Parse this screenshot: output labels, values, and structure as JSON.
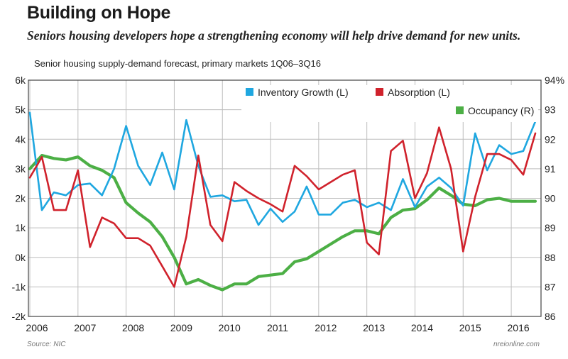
{
  "header": {
    "title": "Building on Hope",
    "subtitle": "Seniors housing developers hope a strengthening economy will help drive demand for new units."
  },
  "footer": {
    "source": "Source: NIC",
    "credit": "nreionline.com"
  },
  "colors": {
    "inventory": "#1fa7e0",
    "absorption": "#d0222c",
    "occupancy": "#4caf45",
    "grid": "#bdbdbd"
  },
  "chart_data": {
    "type": "line",
    "title": "Senior housing supply-demand forecast, primary markets 1Q06–3Q16",
    "x_ticks": [
      "2006",
      "2007",
      "2008",
      "2009",
      "2010",
      "2011",
      "2012",
      "2013",
      "2014",
      "2015",
      "2016"
    ],
    "left_axis": {
      "ylim": [
        -2000,
        6000
      ],
      "tick_values": [
        -2000,
        -1000,
        0,
        1000,
        2000,
        3000,
        4000,
        5000,
        6000
      ],
      "tick_labels": [
        "-2k",
        "-1k",
        "0k",
        "1k",
        "2k",
        "3k",
        "4k",
        "5k",
        "6k"
      ]
    },
    "right_axis": {
      "ylim": [
        86,
        94
      ],
      "tick_values": [
        86,
        87,
        88,
        89,
        90,
        91,
        92,
        93,
        94
      ],
      "tick_labels": [
        "86",
        "87",
        "88",
        "89",
        "90",
        "91",
        "92",
        "93",
        "94%"
      ]
    },
    "legend_position": "top-right",
    "grid": true,
    "x": [
      "1Q06",
      "2Q06",
      "3Q06",
      "4Q06",
      "1Q07",
      "2Q07",
      "3Q07",
      "4Q07",
      "1Q08",
      "2Q08",
      "3Q08",
      "4Q08",
      "1Q09",
      "2Q09",
      "3Q09",
      "4Q09",
      "1Q10",
      "2Q10",
      "3Q10",
      "4Q10",
      "1Q11",
      "2Q11",
      "3Q11",
      "4Q11",
      "1Q12",
      "2Q12",
      "3Q12",
      "4Q12",
      "1Q13",
      "2Q13",
      "3Q13",
      "4Q13",
      "1Q14",
      "2Q14",
      "3Q14",
      "4Q14",
      "1Q15",
      "2Q15",
      "3Q15",
      "4Q15",
      "1Q16",
      "2Q16",
      "3Q16"
    ],
    "series": [
      {
        "name": "Inventory Growth (L)",
        "axis": "left",
        "values": [
          4900,
          1600,
          2200,
          2100,
          2450,
          2500,
          2100,
          3000,
          4450,
          3100,
          2450,
          3550,
          2300,
          4650,
          3100,
          2050,
          2100,
          1900,
          1950,
          1100,
          1650,
          1200,
          1550,
          2400,
          1450,
          1450,
          1850,
          1950,
          1700,
          1850,
          1600,
          2650,
          1700,
          2400,
          2700,
          2350,
          1750,
          4200,
          2950,
          3800,
          3500,
          3600,
          4600
        ]
      },
      {
        "name": "Absorption (L)",
        "axis": "left",
        "values": [
          2700,
          3400,
          1600,
          1600,
          2950,
          350,
          1350,
          1150,
          650,
          650,
          400,
          -300,
          -1000,
          700,
          3450,
          1100,
          550,
          2550,
          2250,
          2000,
          1800,
          1550,
          3100,
          2750,
          2300,
          2550,
          2800,
          2950,
          500,
          100,
          3600,
          3950,
          2000,
          2850,
          4400,
          3000,
          200,
          2050,
          3500,
          3500,
          3300,
          2800,
          4200
        ]
      },
      {
        "name": "Occupancy (R)",
        "axis": "right",
        "values": [
          91.0,
          91.45,
          91.35,
          91.3,
          91.4,
          91.1,
          90.95,
          90.7,
          89.85,
          89.5,
          89.2,
          88.7,
          88.0,
          87.1,
          87.25,
          87.05,
          86.9,
          87.1,
          87.1,
          87.35,
          87.4,
          87.45,
          87.85,
          87.95,
          88.2,
          88.45,
          88.7,
          88.9,
          88.9,
          88.8,
          89.35,
          89.6,
          89.65,
          89.95,
          90.35,
          90.1,
          89.8,
          89.75,
          89.95,
          90.0,
          89.9,
          89.9,
          89.9
        ]
      }
    ]
  }
}
